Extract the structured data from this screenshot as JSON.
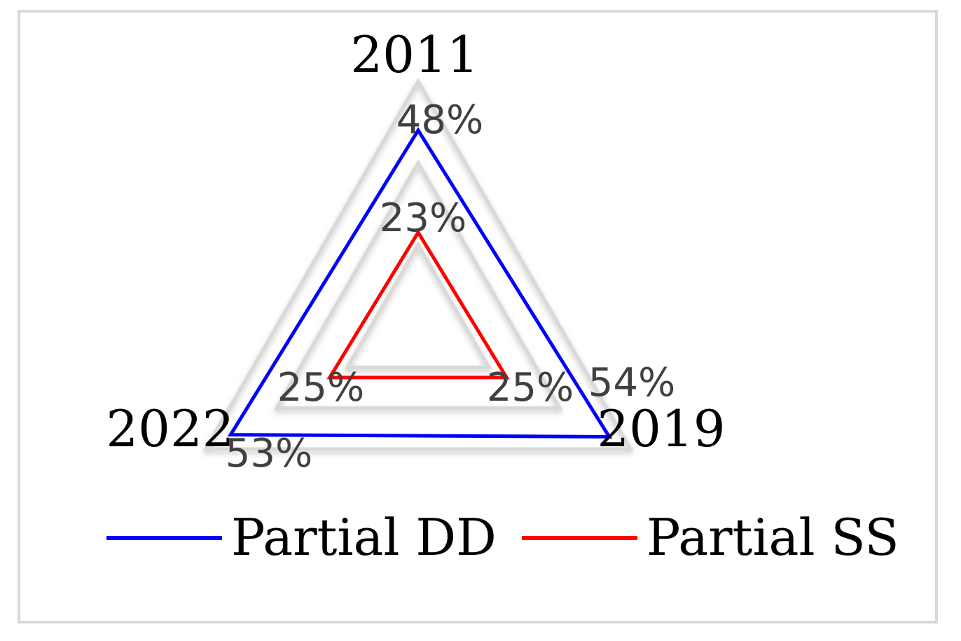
{
  "chart_data": {
    "type": "radar",
    "categories": [
      "2011",
      "2019",
      "2022"
    ],
    "rmax": 0.6,
    "gridlines": [
      0.2,
      0.4,
      0.6
    ],
    "series": [
      {
        "name": "Partial DD",
        "color": "#0000ff",
        "values": [
          0.48,
          0.54,
          0.53
        ],
        "labels": [
          "48%",
          "54%",
          "53%"
        ]
      },
      {
        "name": "Partial SS",
        "color": "#ff0000",
        "values": [
          0.23,
          0.25,
          0.25
        ],
        "labels": [
          "23%",
          "25%",
          "25%"
        ]
      }
    ],
    "legend": "bottom",
    "grid": true
  }
}
